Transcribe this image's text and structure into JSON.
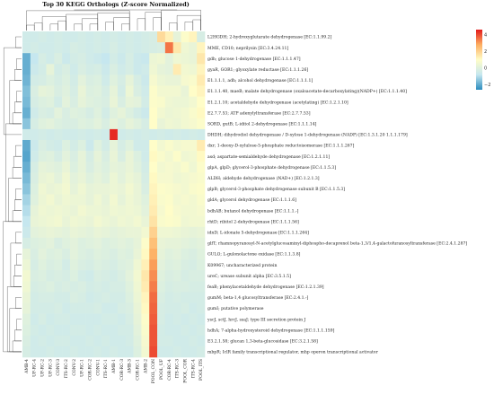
{
  "chart_data": {
    "type": "heatmap",
    "title": "Top 30 KEGG Orthologs (Z-score Normalized)",
    "columns": [
      "AMB-4",
      "UF-RC-4",
      "UF-RC-2",
      "UF-RC-3",
      "CONV-3",
      "ITS-RC-2",
      "CONV-2",
      "UF-RC-1",
      "COR-RC-2",
      "CONV-1",
      "ITS-RC-1",
      "AMB-1",
      "COR-RC-3",
      "AMB-3",
      "COR-RC-1",
      "AMB-2",
      "POOL_CON",
      "POOL_UF",
      "COR-RC-4",
      "ITS-RC-3",
      "POOL_COR",
      "ITS-RC-4",
      "POOL_ITS"
    ],
    "rows": [
      "L2HGDH; 2-hydroxyglutarate dehydrogenase [EC:1.1.99.2]",
      "MME, CD10; neprilysin [EC:3.4.24.11]",
      "gdh; glucose 1-dehydrogenase [EC:1.1.1.47]",
      "gyaR, GOR1; glyoxylate reductase [EC:1.1.1.26]",
      "E1.1.1.1, adh; alcohol dehydrogenase [EC:1.1.1.1]",
      "E1.1.1.40, maeB; malate dehydrogenase (oxaloacetate-decarboxylating)(NADP+) [EC:1.1.1.40]",
      "E1.2.1.10; acetaldehyde dehydrogenase (acetylating) [EC:1.2.1.10]",
      "E2.7.7.53; ATP adenylyltransferase [EC:2.7.7.53]",
      "SORD, gutB; L-iditol 2-dehydrogenase [EC:1.1.1.14]",
      "DHDH; dihydrodiol dehydrogenase / D-xylose 1-dehydrogenase (NADP) [EC:1.3.1.20 1.1.1.179]",
      "dxr; 1-deoxy-D-xylulose-5-phosphate reductoisomerase [EC:1.1.1.267]",
      "asd; aspartate-semialdehyde dehydrogenase [EC:1.2.1.11]",
      "glpA, glpD; glycerol-3-phosphate dehydrogenase [EC:1.1.5.3]",
      "ALDH; aldehyde dehydrogenase (NAD+) [EC:1.2.1.3]",
      "glpB; glycerol-3-phosphate dehydrogenase subunit B [EC:1.1.5.3]",
      "gldA; glycerol dehydrogenase [EC:1.1.1.6]",
      "bdhAB; butanol dehydrogenase [EC:1.1.1.-]",
      "rhtD; ribitol 2-dehydrogenase [EC:1.1.1.56]",
      "idnD; L-idonate 5-dehydrogenase [EC:1.1.1.264]",
      "glfT; rhamnopyranosyl-N-acetylglucosaminyl-diphospho-decaprenol beta-1,3/1,4-galactofuranosyltransferase [EC:2.4.1.287]",
      "GULO; L-gulonolactone oxidase [EC:1.1.3.8]",
      "K09967; uncharacterized protein",
      "ureC; urease subunit alpha [EC:3.5.1.5]",
      "feaB; phenylacetaldehyde dehydrogenase [EC:1.2.1.39]",
      "gumM; beta-1,4 glucosyltransferase [EC:2.4.1.-]",
      "gumI; putative polymerase",
      "yscJ, sctJ, hrcJ, ssaJ; type III secretion protein J",
      "hdhA; 7-alpha-hydroxysteroid dehydrogenase [EC:1.1.1.159]",
      "E3.2.1.58; glucan 1,3-beta-glucosidase [EC:3.2.1.58]",
      "mbpR; IclR family transcriptional regulator, mhp operon transcriptional activator"
    ],
    "values": [
      [
        -0.5,
        -0.5,
        -0.4,
        -0.5,
        -0.4,
        -0.5,
        -0.5,
        -0.4,
        -0.5,
        -0.4,
        -0.5,
        -0.4,
        -0.5,
        -0.4,
        -0.5,
        -0.4,
        -0.3,
        1.8,
        1.3,
        0.2,
        0.9,
        1.2,
        -0.3
      ],
      [
        -0.5,
        -0.4,
        -0.5,
        -0.5,
        -0.4,
        -0.5,
        -0.3,
        -0.4,
        -0.5,
        -0.4,
        -0.5,
        -0.3,
        -0.5,
        -0.4,
        -0.5,
        -0.4,
        -0.3,
        -0.2,
        3.5,
        1.5,
        0.5,
        0.3,
        1.2
      ],
      [
        -1.9,
        -0.8,
        -0.3,
        -0.5,
        -0.2,
        -0.6,
        -0.4,
        -0.3,
        -0.5,
        -0.6,
        -0.8,
        -0.4,
        -0.6,
        -0.3,
        -0.6,
        -0.7,
        0.4,
        0.5,
        0.1,
        0.5,
        0.4,
        0.3,
        1.5
      ],
      [
        -1.9,
        -0.6,
        -0.4,
        0.2,
        -0.4,
        -0.2,
        -0.5,
        -0.2,
        -0.4,
        -0.3,
        -0.6,
        -0.2,
        -0.5,
        -0.3,
        -0.6,
        -0.5,
        0.5,
        0.2,
        0.1,
        1.4,
        0.6,
        0.5,
        1.2
      ],
      [
        -1.8,
        -0.4,
        -0.3,
        -0.1,
        -0.3,
        -0.1,
        -0.4,
        0.1,
        -0.2,
        -0.1,
        -0.5,
        0.0,
        -0.3,
        0.2,
        -0.3,
        -0.6,
        0.7,
        0.4,
        0.3,
        0.3,
        0.7,
        0.8,
        1.4
      ],
      [
        -1.6,
        -0.2,
        0.2,
        0.1,
        -0.2,
        0.0,
        -0.3,
        0.3,
        -0.1,
        0.0,
        -0.3,
        0.2,
        -0.4,
        0.4,
        -0.2,
        -0.5,
        0.9,
        0.6,
        0.6,
        0.6,
        0.3,
        1.0,
        1.2
      ],
      [
        -1.7,
        -0.3,
        -0.1,
        0.0,
        -0.4,
        0.1,
        -0.2,
        0.2,
        0.0,
        -0.1,
        -0.2,
        0.3,
        -0.2,
        0.2,
        0.1,
        -0.4,
        0.9,
        0.8,
        0.5,
        0.4,
        0.4,
        0.6,
        1.0
      ],
      [
        -1.9,
        -0.5,
        -0.2,
        -0.3,
        0.1,
        -0.2,
        0.0,
        -0.1,
        -0.3,
        0.0,
        -0.4,
        0.0,
        0.2,
        -0.1,
        -0.4,
        -0.6,
        1.0,
        0.6,
        0.4,
        0.5,
        0.6,
        0.8,
        1.1
      ],
      [
        -1.5,
        -0.3,
        0.0,
        0.1,
        -0.1,
        -0.2,
        -0.2,
        0.0,
        -0.1,
        0.1,
        -0.2,
        0.2,
        -0.1,
        0.2,
        0.0,
        -0.3,
        1.0,
        0.3,
        0.5,
        0.4,
        0.6,
        0.7,
        0.9
      ],
      [
        -0.5,
        -0.5,
        -0.4,
        -0.5,
        -0.4,
        -0.5,
        -0.5,
        -0.4,
        -0.5,
        -0.4,
        -0.5,
        4.4,
        -0.5,
        -0.4,
        -0.5,
        -0.4,
        -0.5,
        -0.4,
        -0.5,
        -0.4,
        -0.5,
        -0.4,
        -0.5
      ],
      [
        -2.0,
        -0.6,
        -0.2,
        -0.4,
        -0.5,
        -0.1,
        -0.4,
        -0.1,
        -0.6,
        0.0,
        -0.4,
        0.2,
        -0.3,
        0.0,
        -0.5,
        -0.5,
        1.0,
        0.6,
        0.8,
        0.6,
        0.7,
        0.7,
        1.4
      ],
      [
        -2.1,
        -0.5,
        -0.1,
        0.0,
        -0.3,
        0.1,
        -0.2,
        0.2,
        -0.3,
        0.2,
        -0.2,
        0.3,
        -0.2,
        0.3,
        -0.1,
        -0.5,
        1.1,
        0.8,
        0.6,
        0.9,
        0.5,
        0.6,
        1.1
      ],
      [
        -1.9,
        -0.3,
        0.2,
        0.1,
        0.0,
        0.3,
        -0.1,
        0.2,
        -0.2,
        0.1,
        -0.1,
        0.2,
        0.1,
        0.3,
        0.0,
        -0.4,
        1.0,
        0.6,
        0.7,
        0.6,
        0.8,
        0.5,
        0.9
      ],
      [
        -1.7,
        -0.2,
        0.3,
        0.4,
        0.1,
        0.5,
        0.1,
        0.3,
        0.0,
        0.2,
        0.0,
        0.4,
        0.1,
        0.4,
        0.2,
        -0.3,
        1.1,
        0.7,
        0.7,
        0.5,
        0.6,
        0.7,
        0.8
      ],
      [
        -1.5,
        -0.1,
        0.5,
        0.3,
        0.4,
        0.6,
        0.2,
        0.5,
        0.2,
        0.3,
        0.3,
        0.4,
        0.3,
        0.6,
        0.3,
        -0.2,
        1.2,
        0.9,
        0.8,
        0.7,
        0.6,
        0.8,
        0.9
      ],
      [
        -1.2,
        0.0,
        0.4,
        0.6,
        0.3,
        0.5,
        0.4,
        0.4,
        0.2,
        0.5,
        0.2,
        0.6,
        0.2,
        0.5,
        0.3,
        0.0,
        1.3,
        0.8,
        0.9,
        0.6,
        0.7,
        0.6,
        0.8
      ],
      [
        -1.0,
        0.2,
        0.5,
        0.4,
        0.5,
        0.4,
        0.3,
        0.6,
        0.4,
        0.4,
        0.3,
        0.5,
        0.4,
        0.5,
        0.4,
        0.1,
        1.4,
        0.7,
        1.0,
        0.7,
        0.6,
        0.6,
        0.7
      ],
      [
        -0.8,
        0.3,
        0.4,
        0.5,
        0.6,
        0.3,
        0.5,
        0.4,
        0.3,
        0.6,
        0.4,
        0.3,
        0.5,
        0.4,
        0.6,
        0.3,
        1.6,
        0.8,
        0.9,
        0.8,
        0.5,
        0.6,
        0.6
      ],
      [
        -0.6,
        0.1,
        0.2,
        0.3,
        0.2,
        0.1,
        0.3,
        0.2,
        0.1,
        0.3,
        0.2,
        0.1,
        0.2,
        0.3,
        0.3,
        0.6,
        2.0,
        0.5,
        0.5,
        0.4,
        0.3,
        0.2,
        0.3
      ],
      [
        -0.3,
        -0.1,
        0.0,
        0.1,
        -0.2,
        0.0,
        0.1,
        -0.1,
        0.0,
        0.1,
        -0.1,
        0.0,
        0.1,
        0.0,
        0.2,
        0.9,
        2.4,
        0.3,
        0.2,
        0.2,
        0.1,
        0.0,
        0.1
      ],
      [
        0.2,
        -0.2,
        0.1,
        -0.1,
        0.0,
        -0.2,
        0.1,
        -0.1,
        -0.2,
        0.0,
        -0.1,
        -0.2,
        0.0,
        -0.1,
        0.3,
        1.1,
        2.7,
        0.2,
        0.0,
        0.1,
        -0.1,
        -0.2,
        0.0
      ],
      [
        0.4,
        -0.3,
        0.0,
        -0.2,
        -0.1,
        -0.4,
        0.0,
        -0.2,
        -0.3,
        -0.1,
        -0.2,
        -0.3,
        -0.1,
        0.0,
        0.5,
        1.3,
        3.0,
        0.1,
        -0.1,
        0.0,
        -0.2,
        -0.3,
        -0.1
      ],
      [
        0.6,
        -0.2,
        -0.1,
        -0.3,
        -0.2,
        -0.3,
        -0.1,
        -0.4,
        -0.5,
        -0.2,
        -0.3,
        -0.4,
        -0.2,
        0.1,
        0.6,
        1.5,
        3.2,
        0.0,
        -0.2,
        -0.1,
        -0.3,
        -0.2,
        -0.2
      ],
      [
        0.5,
        -0.3,
        -0.2,
        -0.1,
        -0.3,
        -0.2,
        -0.3,
        -0.2,
        -0.4,
        -0.3,
        -0.4,
        -0.3,
        -0.3,
        0.0,
        0.5,
        1.4,
        3.4,
        -0.1,
        -0.3,
        -0.2,
        -0.2,
        -0.3,
        -0.3
      ],
      [
        0.3,
        -0.4,
        -0.3,
        -0.3,
        -0.4,
        -0.4,
        -0.2,
        -0.3,
        -0.5,
        -0.4,
        -0.3,
        -0.4,
        -0.4,
        -0.1,
        0.4,
        1.2,
        3.6,
        -0.2,
        -0.4,
        -0.3,
        -0.4,
        -0.4,
        -0.4
      ],
      [
        0.2,
        -0.4,
        -0.4,
        -0.4,
        -0.3,
        -0.5,
        -0.4,
        -0.4,
        -0.4,
        -0.3,
        -0.5,
        -0.5,
        -0.3,
        -0.2,
        0.3,
        1.1,
        3.7,
        -0.3,
        -0.4,
        -0.4,
        -0.3,
        -0.5,
        -0.4
      ],
      [
        0.0,
        -0.5,
        -0.3,
        -0.5,
        -0.4,
        -0.4,
        -0.5,
        -0.5,
        -0.5,
        -0.5,
        -0.4,
        -0.4,
        -0.5,
        -0.3,
        0.2,
        0.9,
        3.8,
        -0.3,
        -0.5,
        -0.4,
        -0.5,
        -0.4,
        -0.5
      ],
      [
        -0.1,
        -0.4,
        -0.5,
        -0.4,
        -0.5,
        -0.5,
        -0.4,
        -0.4,
        -0.5,
        -0.4,
        -0.5,
        -0.5,
        -0.4,
        -0.4,
        0.1,
        0.8,
        3.9,
        -0.4,
        -0.5,
        -0.5,
        -0.4,
        -0.5,
        -0.4
      ],
      [
        -0.2,
        -0.5,
        -0.4,
        -0.5,
        -0.4,
        -0.4,
        -0.5,
        -0.5,
        -0.4,
        -0.5,
        -0.4,
        -0.5,
        -0.5,
        -0.4,
        0.0,
        0.7,
        3.9,
        -0.4,
        -0.4,
        -0.5,
        -0.5,
        -0.4,
        -0.5
      ],
      [
        -0.3,
        -0.5,
        -0.5,
        -0.4,
        -0.5,
        -0.5,
        -0.4,
        -0.5,
        -0.5,
        -0.4,
        -0.5,
        -0.4,
        -0.5,
        -0.5,
        -0.1,
        0.6,
        4.0,
        -0.5,
        -0.5,
        -0.4,
        -0.5,
        -0.5,
        -0.4
      ]
    ],
    "colorbar": {
      "ticks": [
        -2,
        0,
        2,
        4
      ],
      "min": -2.6,
      "max": 4.6,
      "colors": [
        "#2b8cbe",
        "#c6e7ef",
        "#fffdc8",
        "#fdae61",
        "#e31a1c"
      ]
    }
  }
}
